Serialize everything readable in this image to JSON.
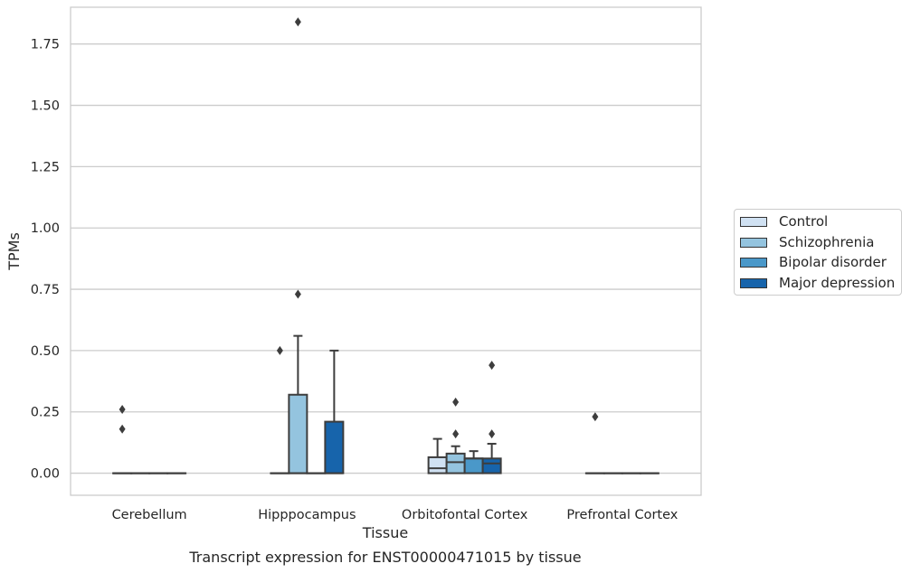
{
  "chart_data": {
    "type": "boxplot",
    "title": "Transcript expression for ENST00000471015 by tissue",
    "xlabel": "Tissue",
    "ylabel": "TPMs",
    "ylim": [
      -0.09,
      1.9
    ],
    "yticks": [
      "0.00",
      "0.25",
      "0.50",
      "0.75",
      "1.00",
      "1.25",
      "1.50",
      "1.75"
    ],
    "ytick_values": [
      0,
      0.25,
      0.5,
      0.75,
      1.0,
      1.25,
      1.5,
      1.75
    ],
    "grid": true,
    "legend_placement": "right",
    "categories": [
      "Cerebellum",
      "Hipppocampus",
      "Orbitofontal Cortex",
      "Prefrontal Cortex"
    ],
    "series": [
      {
        "name": "Control",
        "color": "#d0e1f2",
        "boxes": [
          {
            "q1": 0,
            "median": 0,
            "q3": 0,
            "whisker_low": 0,
            "whisker_high": 0,
            "outliers": [
              0.26,
              0.18
            ]
          },
          {
            "q1": 0,
            "median": 0,
            "q3": 0,
            "whisker_low": 0,
            "whisker_high": 0,
            "outliers": [
              0.5
            ]
          },
          {
            "q1": 0,
            "median": 0.02,
            "q3": 0.065,
            "whisker_low": 0,
            "whisker_high": 0.14,
            "outliers": []
          },
          {
            "q1": 0,
            "median": 0,
            "q3": 0,
            "whisker_low": 0,
            "whisker_high": 0,
            "outliers": [
              0.23
            ]
          }
        ]
      },
      {
        "name": "Schizophrenia",
        "color": "#94c4df",
        "boxes": [
          {
            "q1": 0,
            "median": 0,
            "q3": 0,
            "whisker_low": 0,
            "whisker_high": 0,
            "outliers": []
          },
          {
            "q1": 0,
            "median": 0,
            "q3": 0.32,
            "whisker_low": 0,
            "whisker_high": 0.56,
            "outliers": [
              1.84,
              0.73
            ]
          },
          {
            "q1": 0,
            "median": 0.045,
            "q3": 0.08,
            "whisker_low": 0,
            "whisker_high": 0.11,
            "outliers": [
              0.29,
              0.16
            ]
          },
          {
            "q1": 0,
            "median": 0,
            "q3": 0,
            "whisker_low": 0,
            "whisker_high": 0,
            "outliers": []
          }
        ]
      },
      {
        "name": "Bipolar disorder",
        "color": "#4a98c9",
        "boxes": [
          {
            "q1": 0,
            "median": 0,
            "q3": 0,
            "whisker_low": 0,
            "whisker_high": 0,
            "outliers": []
          },
          {
            "q1": 0,
            "median": 0,
            "q3": 0,
            "whisker_low": 0,
            "whisker_high": 0,
            "outliers": []
          },
          {
            "q1": 0,
            "median": 0.06,
            "q3": 0.06,
            "whisker_low": 0,
            "whisker_high": 0.09,
            "outliers": []
          },
          {
            "q1": 0,
            "median": 0,
            "q3": 0,
            "whisker_low": 0,
            "whisker_high": 0,
            "outliers": []
          }
        ]
      },
      {
        "name": "Major depression",
        "color": "#1764ab",
        "boxes": [
          {
            "q1": 0,
            "median": 0,
            "q3": 0,
            "whisker_low": 0,
            "whisker_high": 0,
            "outliers": []
          },
          {
            "q1": 0,
            "median": 0,
            "q3": 0.21,
            "whisker_low": 0,
            "whisker_high": 0.5,
            "outliers": []
          },
          {
            "q1": 0,
            "median": 0.04,
            "q3": 0.06,
            "whisker_low": 0,
            "whisker_high": 0.12,
            "outliers": [
              0.44,
              0.16
            ]
          },
          {
            "q1": 0,
            "median": 0,
            "q3": 0,
            "whisker_low": 0,
            "whisker_high": 0,
            "outliers": []
          }
        ]
      }
    ]
  }
}
